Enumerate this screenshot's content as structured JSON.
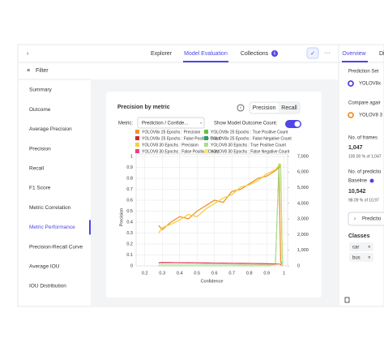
{
  "nav": {
    "tabs": [
      "Explorer",
      "Model Evaluation",
      "Collections"
    ],
    "badge": "6",
    "panel_tabs": [
      "Overview",
      "Di"
    ]
  },
  "sidebar": {
    "filter": "Filter",
    "items": [
      "Summary",
      "Outcome",
      "Average Precision",
      "Precision",
      "Recall",
      "F1 Score",
      "Metric Correlation",
      "Metric Performance",
      "Precision-Recall Curve",
      "Average IOU",
      "IOU Distribution"
    ]
  },
  "panel": {
    "prediction_set_label": "Prediction Set",
    "prediction_set": "YOLOV8x",
    "compare_label": "Compare agair",
    "compare_set": "YOLOV8 3",
    "frames_label": "No. of frames",
    "frames_value": "1,047",
    "frames_sub": "100.00 % of 1,047",
    "predictions_label": "No. of predictio",
    "baseline": "Baseline",
    "predictions_value": "10,542",
    "predictions_sub": "98.09 % of 10,97",
    "predictions_button": "Predictio",
    "classes_label": "Classes",
    "classes": [
      "car",
      "bus"
    ]
  },
  "chart_data": {
    "type": "line",
    "title": "Precision by metric",
    "toggle": [
      "Precision",
      "Recall"
    ],
    "metric_label": "Metric:",
    "metric_value": "Prediction / Confide...",
    "outcome_label": "Show Model Outcome Count:",
    "xlabel": "Confidence",
    "ylabel": "Precision",
    "x": [
      0.28,
      0.3,
      0.35,
      0.4,
      0.45,
      0.5,
      0.55,
      0.6,
      0.65,
      0.7,
      0.75,
      0.8,
      0.85,
      0.9,
      0.95,
      0.97,
      0.98,
      0.99
    ],
    "xlim": [
      0.15,
      1.02
    ],
    "xticks": [
      0.2,
      0.3,
      0.4,
      0.5,
      0.6,
      0.7,
      0.8,
      0.9,
      1
    ],
    "ylim": [
      0,
      1
    ],
    "yticks": [
      0,
      0.1,
      0.2,
      0.3,
      0.4,
      0.5,
      0.6,
      0.7,
      0.8,
      0.9,
      1
    ],
    "y2lim": [
      0,
      7000
    ],
    "y2ticks": [
      0,
      {
        "value": 1000,
        "label": "1,000"
      },
      {
        "value": 2000,
        "label": "2,000"
      },
      {
        "value": 3000,
        "label": "3,000"
      },
      {
        "value": 4000,
        "label": "4,000"
      },
      {
        "value": 5000,
        "label": "5,000"
      },
      {
        "value": 6000,
        "label": "6,000"
      },
      {
        "value": 7000,
        "label": "7,000"
      }
    ],
    "grid": true,
    "series": [
      {
        "name": "YOLOV8x 25 Epochs : Precision",
        "color": "#f0922e",
        "values": [
          0.37,
          0.33,
          0.4,
          0.45,
          0.43,
          0.5,
          0.55,
          0.6,
          0.58,
          0.68,
          0.7,
          0.75,
          0.8,
          0.82,
          0.87,
          0.9,
          0.05,
          0
        ]
      },
      {
        "name": "YOLOV8x 25 Epochs : True Positive Count",
        "color": "#6cbf3f",
        "axis": "y2",
        "values": [
          0,
          0,
          0,
          0,
          0,
          0,
          0,
          0,
          0,
          0,
          0,
          0,
          0,
          0,
          100,
          6500,
          6300,
          0
        ]
      },
      {
        "name": "YOLOV8x 25 Epochs : False Positive Count",
        "color": "#d7262b",
        "axis": "y2",
        "values": [
          200,
          220,
          210,
          200,
          200,
          190,
          190,
          180,
          180,
          170,
          170,
          160,
          150,
          140,
          130,
          120,
          100,
          0
        ]
      },
      {
        "name": "YOLOV8x 25 Epochs : False Negative Count",
        "color": "#2a9d6f",
        "axis": "y2",
        "values": [
          50,
          50,
          50,
          50,
          50,
          50,
          50,
          50,
          50,
          50,
          60,
          60,
          60,
          70,
          80,
          100,
          200,
          0
        ]
      },
      {
        "name": "YOLOV8 30 Epochs : Precision",
        "color": "#f4d03f",
        "values": [
          0.3,
          0.35,
          0.38,
          0.42,
          0.47,
          0.45,
          0.52,
          0.57,
          0.62,
          0.65,
          0.72,
          0.74,
          0.78,
          0.84,
          0.88,
          0.92,
          0.93,
          0
        ]
      },
      {
        "name": "YOLOV8 30 Epochs : True Positive Count",
        "color": "#a8e08a",
        "axis": "y2",
        "values": [
          0,
          0,
          0,
          0,
          0,
          0,
          0,
          0,
          0,
          0,
          0,
          0,
          0,
          0,
          80,
          6200,
          6400,
          0
        ]
      },
      {
        "name": "YOLOV8 30 Epochs : False Positive Count",
        "color": "#e8457f",
        "axis": "y2",
        "values": [
          180,
          200,
          190,
          190,
          180,
          180,
          170,
          170,
          160,
          160,
          150,
          150,
          140,
          130,
          120,
          110,
          90,
          0
        ]
      },
      {
        "name": "YOLOV8 30 Epochs : False Negative Count",
        "color": "#f7e58a",
        "axis": "y2",
        "values": [
          40,
          40,
          40,
          40,
          40,
          40,
          40,
          40,
          40,
          40,
          50,
          50,
          50,
          60,
          70,
          90,
          180,
          0
        ]
      }
    ]
  }
}
